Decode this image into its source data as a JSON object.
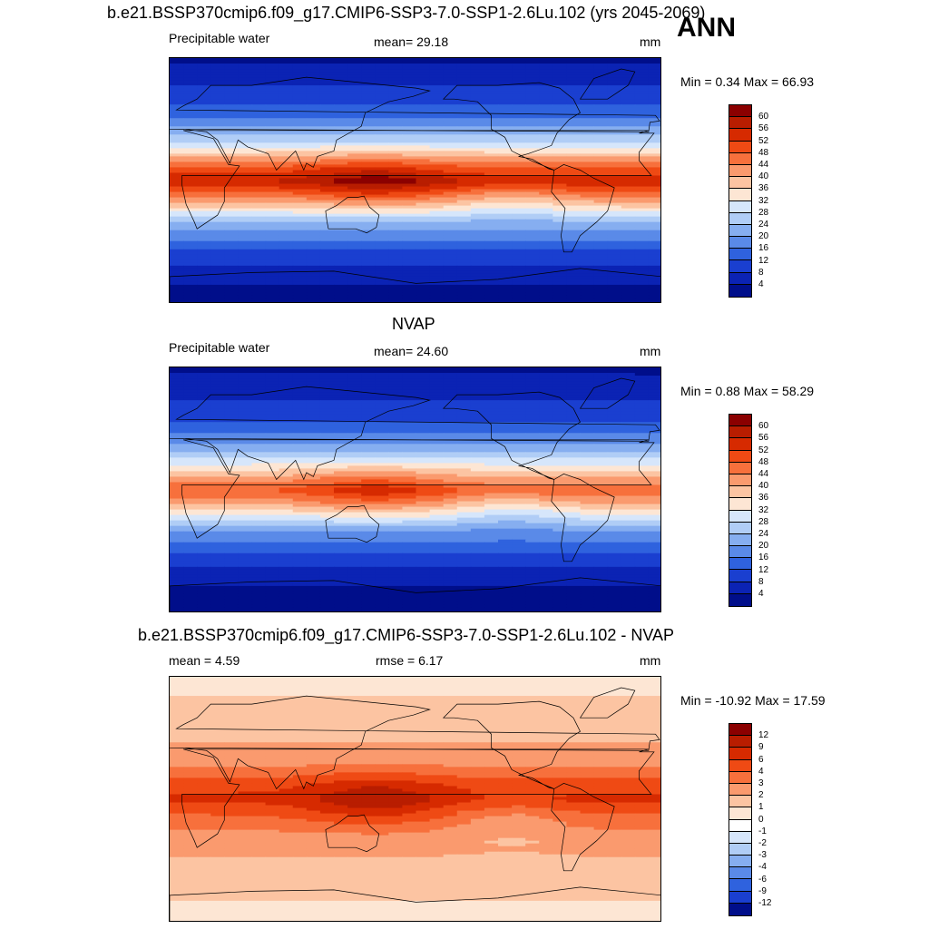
{
  "header": {
    "title": "b.e21.BSSP370cmip6.f09_g17.CMIP6-SSP3-7.0-SSP1-2.6Lu.102 (yrs 2045-2069)",
    "season": "ANN"
  },
  "panels": [
    {
      "id": "model",
      "subtitle": "",
      "variable": "Precipitable water",
      "stat_text": "mean=  29.18",
      "units": "mm",
      "minmax": "Min =   0.34 Max =  66.93",
      "colorbar": {
        "labels": [
          "60",
          "56",
          "52",
          "48",
          "44",
          "40",
          "36",
          "32",
          "28",
          "24",
          "20",
          "16",
          "12",
          "8",
          "4"
        ],
        "colors": [
          "#8b0000",
          "#b81d00",
          "#d62a00",
          "#ef4a14",
          "#f7703c",
          "#fa9a6e",
          "#fcc4a2",
          "#fde6d4",
          "#d6e6fb",
          "#b0cdf6",
          "#86aef0",
          "#5a8ae8",
          "#2f62de",
          "#1a3fd0",
          "#0b23b4",
          "#000e8a"
        ],
        "range": [
          4,
          60
        ]
      },
      "field": {
        "type": "contour-filled-map",
        "zonal_profile": [
          {
            "lat": 90,
            "value": 3
          },
          {
            "lat": 70,
            "value": 8
          },
          {
            "lat": 50,
            "value": 14
          },
          {
            "lat": 30,
            "value": 26
          },
          {
            "lat": 10,
            "value": 48
          },
          {
            "lat": 0,
            "value": 56
          },
          {
            "lat": -10,
            "value": 46
          },
          {
            "lat": -30,
            "value": 24
          },
          {
            "lat": -50,
            "value": 12
          },
          {
            "lat": -70,
            "value": 5
          },
          {
            "lat": -90,
            "value": 2
          }
        ]
      }
    },
    {
      "id": "obs",
      "subtitle": "NVAP",
      "variable": "Precipitable water",
      "stat_text": "mean=  24.60",
      "units": "mm",
      "minmax": "Min =   0.88 Max =  58.29",
      "colorbar": {
        "labels": [
          "60",
          "56",
          "52",
          "48",
          "44",
          "40",
          "36",
          "32",
          "28",
          "24",
          "20",
          "16",
          "12",
          "8",
          "4"
        ],
        "colors": [
          "#8b0000",
          "#b81d00",
          "#d62a00",
          "#ef4a14",
          "#f7703c",
          "#fa9a6e",
          "#fcc4a2",
          "#fde6d4",
          "#d6e6fb",
          "#b0cdf6",
          "#86aef0",
          "#5a8ae8",
          "#2f62de",
          "#1a3fd0",
          "#0b23b4",
          "#000e8a"
        ],
        "range": [
          4,
          60
        ]
      },
      "field": {
        "type": "contour-filled-map",
        "zonal_profile": [
          {
            "lat": 90,
            "value": 3
          },
          {
            "lat": 70,
            "value": 7
          },
          {
            "lat": 50,
            "value": 12
          },
          {
            "lat": 30,
            "value": 22
          },
          {
            "lat": 10,
            "value": 40
          },
          {
            "lat": 0,
            "value": 48
          },
          {
            "lat": -10,
            "value": 40
          },
          {
            "lat": -30,
            "value": 20
          },
          {
            "lat": -50,
            "value": 10
          },
          {
            "lat": -70,
            "value": 4
          },
          {
            "lat": -90,
            "value": 2
          }
        ]
      }
    },
    {
      "id": "diff",
      "subtitle": "b.e21.BSSP370cmip6.f09_g17.CMIP6-SSP3-7.0-SSP1-2.6Lu.102 - NVAP",
      "variable": "mean =   4.59",
      "stat_text": "rmse =   6.17",
      "units": "mm",
      "minmax": "Min = -10.92 Max =  17.59",
      "colorbar": {
        "labels": [
          "12",
          "9",
          "6",
          "4",
          "3",
          "2",
          "1",
          "0",
          "-1",
          "-2",
          "-3",
          "-4",
          "-6",
          "-9",
          "-12"
        ],
        "colors": [
          "#8b0000",
          "#b81d00",
          "#d62a00",
          "#ef4a14",
          "#f7703c",
          "#fa9a6e",
          "#fcc4a2",
          "#fde6d4",
          "#ffffff",
          "#d6e6fb",
          "#b0cdf6",
          "#86aef0",
          "#5a8ae8",
          "#2f62de",
          "#1a3fd0",
          "#000e8a"
        ],
        "range": [
          -12,
          12
        ]
      },
      "field": {
        "type": "contour-filled-map",
        "zonal_profile": [
          {
            "lat": 90,
            "value": 1
          },
          {
            "lat": 70,
            "value": 2
          },
          {
            "lat": 50,
            "value": 3
          },
          {
            "lat": 30,
            "value": 4
          },
          {
            "lat": 10,
            "value": 8
          },
          {
            "lat": 0,
            "value": 9
          },
          {
            "lat": -10,
            "value": 7
          },
          {
            "lat": -30,
            "value": 4
          },
          {
            "lat": -50,
            "value": 3
          },
          {
            "lat": -70,
            "value": 2
          },
          {
            "lat": -90,
            "value": 0.5
          }
        ]
      }
    }
  ]
}
